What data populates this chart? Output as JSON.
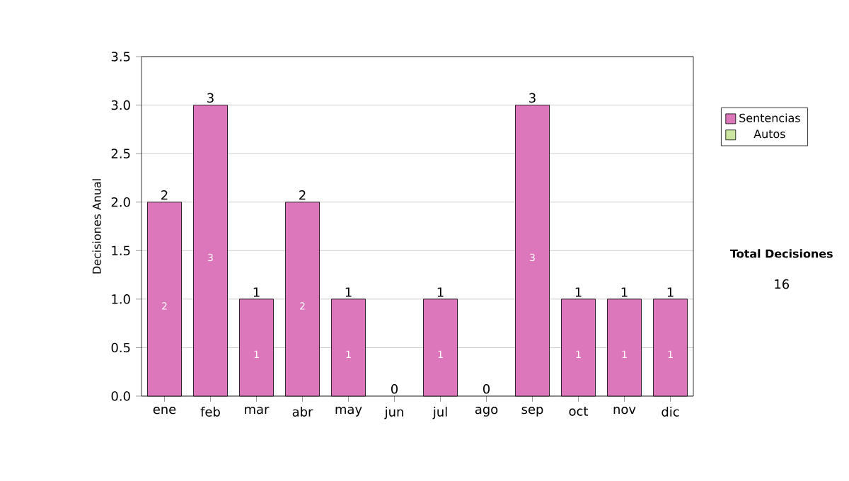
{
  "chart_data": {
    "type": "bar",
    "stacked": true,
    "ylabel": "Decisiones Anual",
    "categories": [
      "ene",
      "feb",
      "mar",
      "abr",
      "may",
      "jun",
      "jul",
      "ago",
      "sep",
      "oct",
      "nov",
      "dic"
    ],
    "series": [
      {
        "name": "Sentencias",
        "color": "#dd77bb",
        "values": [
          2,
          3,
          1,
          2,
          1,
          0,
          1,
          0,
          3,
          1,
          1,
          1
        ],
        "value_labels": [
          "2",
          "3",
          "1",
          "2",
          "1",
          null,
          "1",
          null,
          "3",
          "1",
          "1",
          "1"
        ]
      },
      {
        "name": "Autos",
        "color": "#cce5a0",
        "values": [
          0,
          0,
          0,
          0,
          0,
          0,
          0,
          0,
          0,
          0,
          0,
          0
        ]
      }
    ],
    "totals": [
      "2",
      "3",
      "1",
      "2",
      "1",
      "0",
      "1",
      "0",
      "3",
      "1",
      "1",
      "1"
    ],
    "ylim": [
      0,
      3.5
    ],
    "yticks": [
      {
        "value": 0,
        "label": "0.0"
      },
      0.5,
      {
        "value": 1,
        "label": "1.0"
      },
      1.5,
      {
        "value": 2,
        "label": "2.0"
      },
      2.5,
      {
        "value": 3,
        "label": "3.0"
      },
      3.5
    ],
    "grid": "y",
    "legend": "right",
    "annotations": [
      "Total Decisiones",
      "16"
    ]
  }
}
